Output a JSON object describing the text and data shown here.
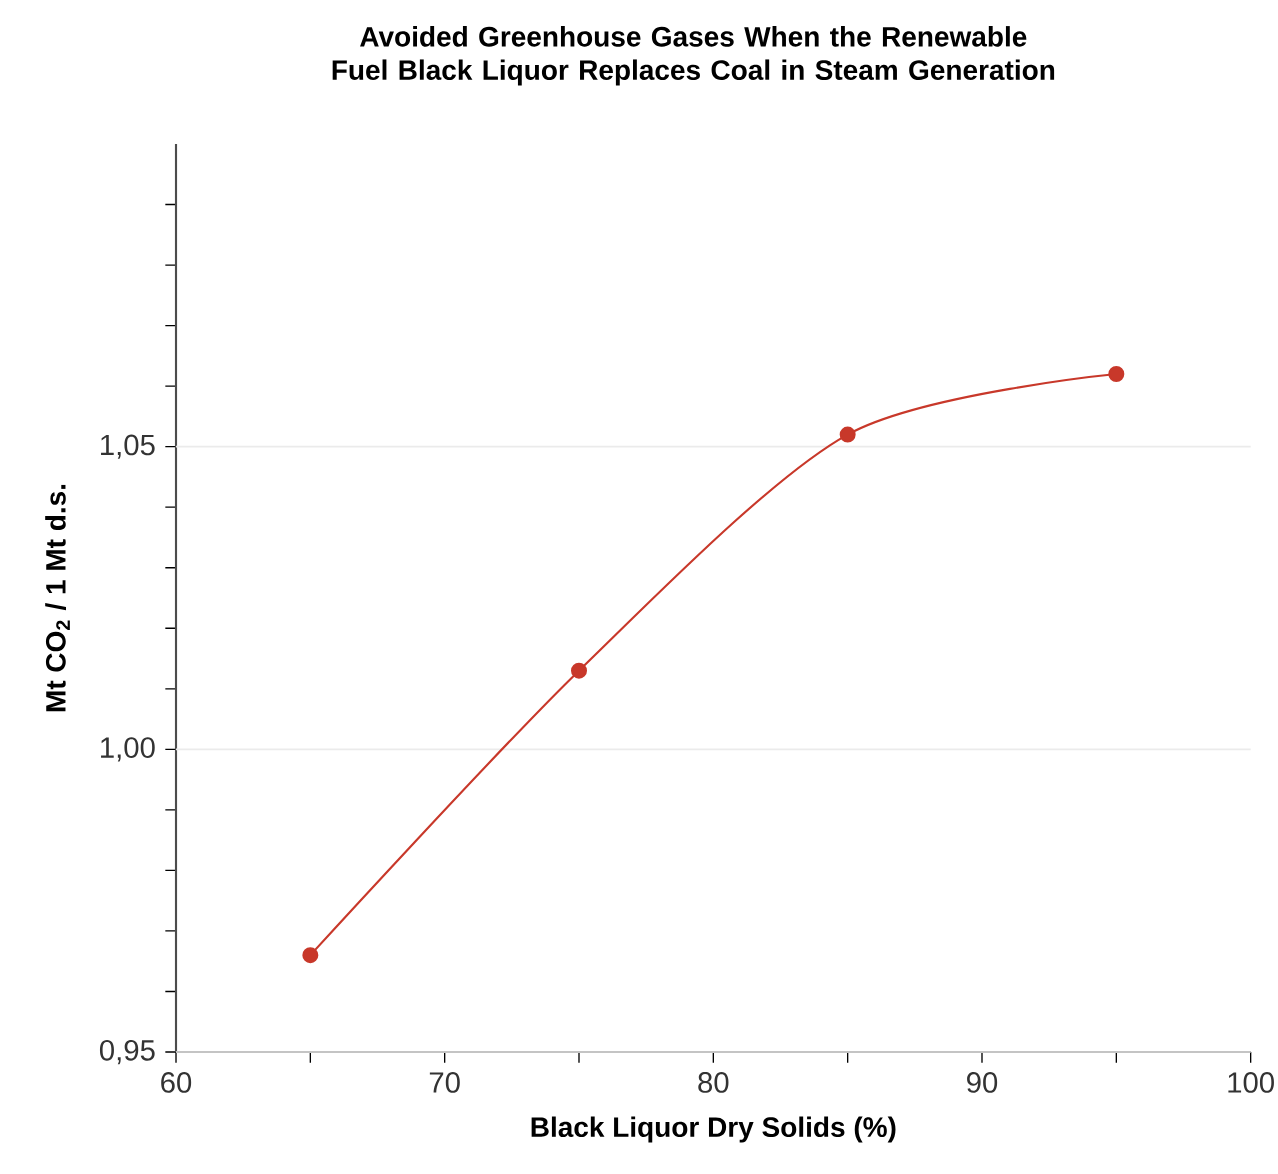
{
  "chart_data": {
    "type": "line",
    "title": "Avoided Greenhouse Gases When the Renewable Fuel Black Liquor Replaces Coal in Steam Generation",
    "xlabel": "Black Liquor Dry Solids (%)",
    "ylabel": "Mt CO$_{2}$ / 1 Mt d.s.",
    "x": [
      65,
      75,
      85,
      95
    ],
    "series": [
      {
        "color": "#c8382a",
        "values": [
          0.966,
          1.013,
          1.052,
          1.062
        ]
      }
    ],
    "xlim": [
      60,
      100
    ],
    "xticks": [
      60,
      {
        "value": 65,
        "label": null
      },
      70,
      {
        "value": 75,
        "label": null
      },
      80,
      {
        "value": 85,
        "label": null
      },
      90,
      {
        "value": 95,
        "label": null
      },
      100
    ],
    "ylim": [
      0.95,
      1.1
    ],
    "yticks": [
      {
        "value": 0.95,
        "label": "0,95"
      },
      {
        "value": 0.96,
        "label": null
      },
      {
        "value": 0.97,
        "label": null
      },
      {
        "value": 0.98,
        "label": null
      },
      {
        "value": 0.99,
        "label": null
      },
      {
        "value": 1.0,
        "label": "1,00"
      },
      {
        "value": 1.01,
        "label": null
      },
      {
        "value": 1.02,
        "label": null
      },
      {
        "value": 1.03,
        "label": null
      },
      {
        "value": 1.04,
        "label": null
      },
      {
        "value": 1.05,
        "label": "1,05"
      },
      {
        "value": 1.06,
        "label": null
      },
      {
        "value": 1.07,
        "label": null
      },
      {
        "value": 1.08,
        "label": null
      },
      {
        "value": 1.09,
        "label": null
      }
    ],
    "grid": "y",
    "marker": "circle",
    "line_style": "solid"
  }
}
